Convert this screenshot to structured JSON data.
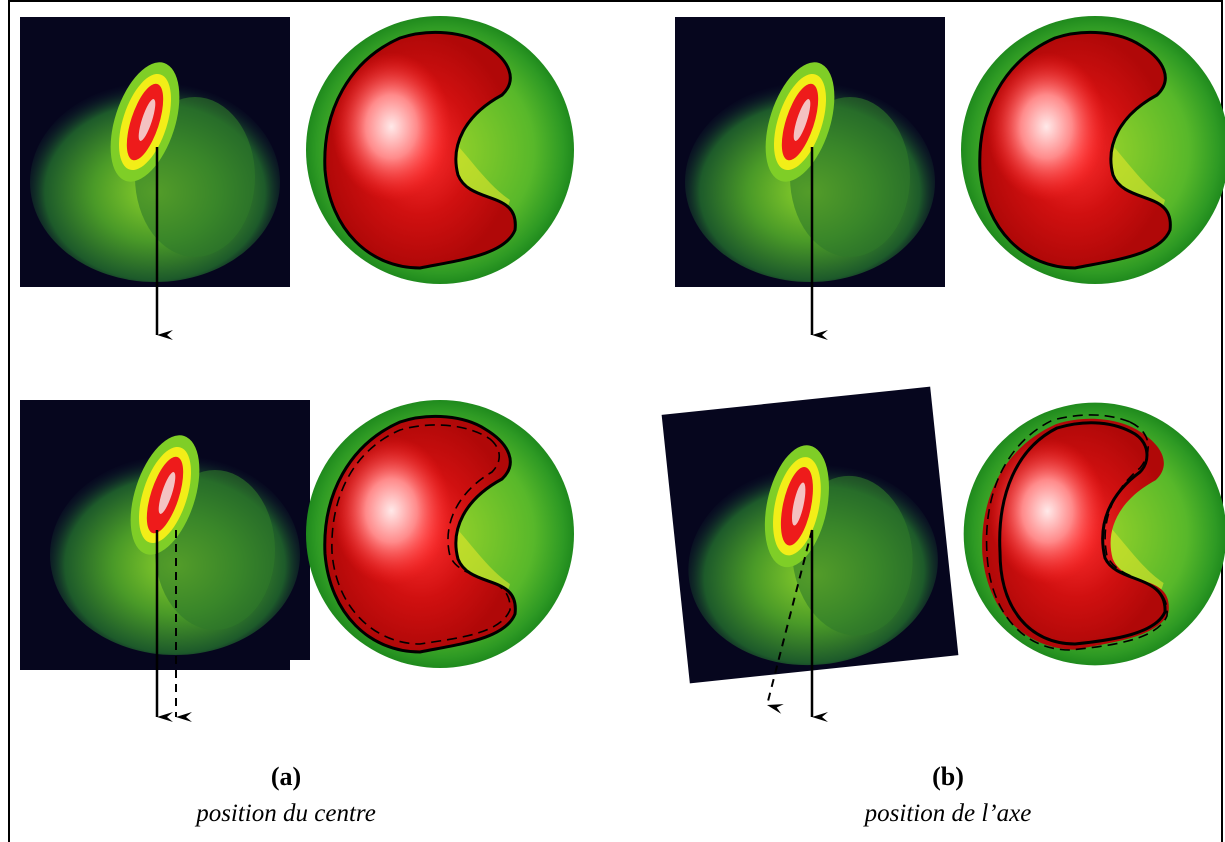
{
  "panels": [
    {
      "tag": "(a)",
      "caption": "position du centre"
    },
    {
      "tag": "(b)",
      "caption": "position de l’axe"
    }
  ],
  "colors": {
    "background_dark": "#06061e",
    "activity_low": "#1e7a2a",
    "activity_mid": "#7ccc1c",
    "activity_high": "#f2ee18",
    "activity_peak": "#ee1b1b",
    "contour": "#000000"
  }
}
